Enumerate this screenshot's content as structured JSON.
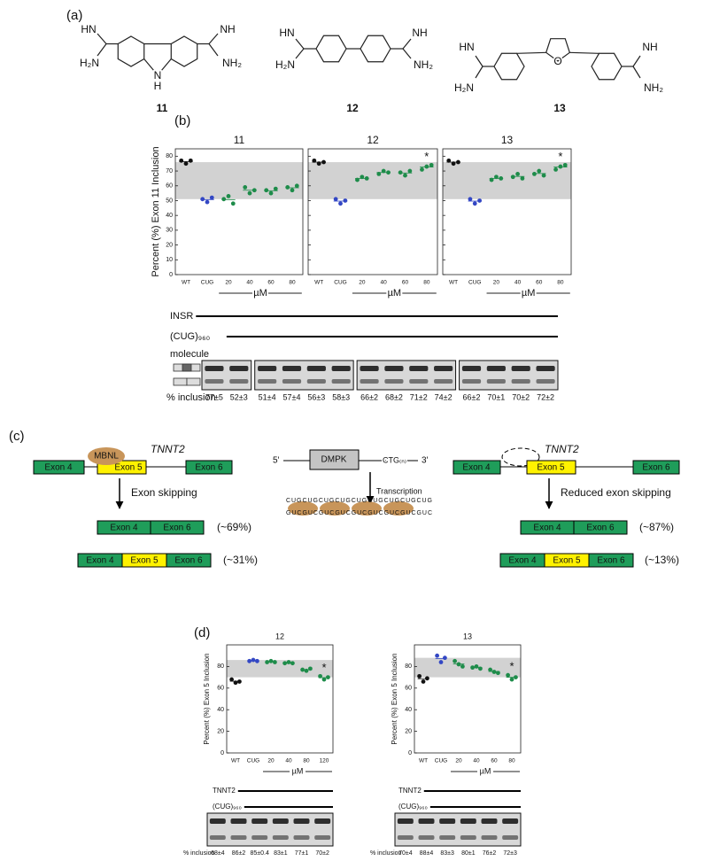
{
  "panels": [
    "(a)",
    "(b)",
    "(c)",
    "(d)"
  ],
  "molecules": [
    {
      "label": "11",
      "atoms": [
        "HN",
        "H₂N",
        "N",
        "H",
        "NH",
        "NH₂"
      ]
    },
    {
      "label": "12",
      "atoms": [
        "HN",
        "H₂N",
        "NH",
        "NH₂"
      ]
    },
    {
      "label": "13",
      "atoms": [
        "HN",
        "H₂N",
        "O",
        "NH",
        "NH₂"
      ]
    }
  ],
  "chart_data": [
    {
      "type": "strip",
      "title": "11",
      "y_label": "Percent (%) Exon 11 Inclusion",
      "x_label": "µM",
      "categories": [
        "WT",
        "CUG",
        "20",
        "40",
        "60",
        "80"
      ],
      "groups": [
        {
          "color": "#111111",
          "values": [
            77,
            75,
            77
          ]
        },
        {
          "color": "#3347c4",
          "values": [
            51,
            49,
            52
          ]
        },
        {
          "color": "#1e8c4a",
          "values": [
            51,
            53,
            48
          ]
        },
        {
          "color": "#1e8c4a",
          "values": [
            59,
            55,
            57
          ]
        },
        {
          "color": "#1e8c4a",
          "values": [
            57,
            55,
            58
          ]
        },
        {
          "color": "#1e8c4a",
          "values": [
            59,
            57,
            60
          ]
        }
      ],
      "ylim": [
        0,
        85
      ],
      "yticks": [
        0,
        10,
        20,
        30,
        40,
        50,
        60,
        70,
        80
      ],
      "shaded_range": [
        51,
        76
      ],
      "grid": false
    },
    {
      "type": "strip",
      "title": "12",
      "x_label": "µM",
      "categories": [
        "WT",
        "CUG",
        "20",
        "40",
        "60",
        "80"
      ],
      "groups": [
        {
          "color": "#111111",
          "values": [
            77,
            75,
            76
          ]
        },
        {
          "color": "#3347c4",
          "values": [
            51,
            48,
            50
          ]
        },
        {
          "color": "#1e8c4a",
          "values": [
            64,
            66,
            65
          ]
        },
        {
          "color": "#1e8c4a",
          "values": [
            68,
            70,
            69
          ]
        },
        {
          "color": "#1e8c4a",
          "values": [
            69,
            67,
            70
          ]
        },
        {
          "color": "#1e8c4a",
          "values": [
            71,
            73,
            74
          ]
        }
      ],
      "ylim": [
        0,
        85
      ],
      "yticks": [
        0,
        10,
        20,
        30,
        40,
        50,
        60,
        70,
        80
      ],
      "tick_labels": false,
      "shaded_range": [
        51,
        76
      ],
      "grid": false,
      "annotations": [
        {
          "text": "*",
          "at": "80"
        }
      ]
    },
    {
      "type": "strip",
      "title": "13",
      "x_label": "µM",
      "categories": [
        "WT",
        "CUG",
        "20",
        "40",
        "60",
        "80"
      ],
      "groups": [
        {
          "color": "#111111",
          "values": [
            77,
            75,
            76
          ]
        },
        {
          "color": "#3347c4",
          "values": [
            51,
            48,
            50
          ]
        },
        {
          "color": "#1e8c4a",
          "values": [
            64,
            66,
            65
          ]
        },
        {
          "color": "#1e8c4a",
          "values": [
            66,
            68,
            65
          ]
        },
        {
          "color": "#1e8c4a",
          "values": [
            68,
            70,
            67
          ]
        },
        {
          "color": "#1e8c4a",
          "values": [
            71,
            73,
            74
          ]
        }
      ],
      "ylim": [
        0,
        85
      ],
      "yticks": [
        0,
        10,
        20,
        30,
        40,
        50,
        60,
        70,
        80
      ],
      "tick_labels": false,
      "shaded_range": [
        51,
        76
      ],
      "grid": false,
      "annotations": [
        {
          "text": "*",
          "at": "80"
        }
      ]
    },
    {
      "type": "strip",
      "title": "12",
      "y_label": "Percent (%) Exon 5 Inclusion",
      "x_label": "µM",
      "categories": [
        "WT",
        "CUG",
        "20",
        "40",
        "80",
        "120"
      ],
      "groups": [
        {
          "color": "#111111",
          "values": [
            68,
            65,
            66
          ]
        },
        {
          "color": "#3347c4",
          "values": [
            85,
            86,
            85
          ]
        },
        {
          "color": "#1e8c4a",
          "values": [
            84,
            85,
            84
          ]
        },
        {
          "color": "#1e8c4a",
          "values": [
            83,
            84,
            83
          ]
        },
        {
          "color": "#1e8c4a",
          "values": [
            77,
            76,
            78
          ]
        },
        {
          "color": "#1e8c4a",
          "values": [
            71,
            68,
            70
          ]
        }
      ],
      "ylim": [
        0,
        100
      ],
      "yticks": [
        0,
        20,
        40,
        60,
        80
      ],
      "shaded_range": [
        70,
        86
      ],
      "grid": false,
      "annotations": [
        {
          "text": "*",
          "at": "120"
        }
      ]
    },
    {
      "type": "strip",
      "title": "13",
      "y_label": "Percent (%) Exon 5 Inclusion",
      "x_label": "µM",
      "categories": [
        "WT",
        "CUG",
        "20",
        "40",
        "60",
        "80"
      ],
      "groups": [
        {
          "color": "#111111",
          "values": [
            71,
            66,
            69
          ]
        },
        {
          "color": "#3347c4",
          "values": [
            90,
            84,
            88
          ]
        },
        {
          "color": "#1e8c4a",
          "values": [
            85,
            82,
            80
          ]
        },
        {
          "color": "#1e8c4a",
          "values": [
            79,
            80,
            78
          ]
        },
        {
          "color": "#1e8c4a",
          "values": [
            77,
            75,
            74
          ]
        },
        {
          "color": "#1e8c4a",
          "values": [
            72,
            68,
            70
          ]
        }
      ],
      "ylim": [
        0,
        100
      ],
      "yticks": [
        0,
        20,
        40,
        60,
        80
      ],
      "shaded_range": [
        70,
        88
      ],
      "grid": false,
      "annotations": [
        {
          "text": "*",
          "at": "80"
        }
      ]
    }
  ],
  "gels": [
    {
      "rows": [
        "INSR",
        "(CUG)₉₆₀",
        "molecule"
      ],
      "inclusion_label": "% inclusion",
      "inclusion": [
        "77±5",
        "52±3",
        "51±4",
        "57±4",
        "56±3",
        "58±3",
        "66±2",
        "68±2",
        "71±2",
        "74±2",
        "66±2",
        "70±1",
        "70±2",
        "72±2"
      ]
    },
    {
      "rows": [
        "TNNT2",
        "(CUG)₉₆₀"
      ],
      "inclusion_label": "% inclusion",
      "inclusion": [
        "68±4",
        "86±2",
        "85±0.4",
        "83±1",
        "77±1",
        "70±2"
      ]
    },
    {
      "rows": [
        "TNNT2",
        "(CUG)₉₆₀"
      ],
      "inclusion_label": "% inclusion",
      "inclusion": [
        "70±4",
        "88±4",
        "83±3",
        "80±1",
        "76±2",
        "72±3"
      ]
    }
  ],
  "splicing": {
    "left": {
      "gene": "TNNT2",
      "protein": "MBNL",
      "exons": [
        "Exon 4",
        "Exon 5",
        "Exon 6"
      ],
      "step": "Exon skipping",
      "products": [
        {
          "exons": [
            "Exon 4",
            "Exon 6"
          ],
          "fraction": "(~69%)"
        },
        {
          "exons": [
            "Exon 4",
            "Exon 5",
            "Exon 6"
          ],
          "fraction": "(~31%)"
        }
      ]
    },
    "middle": {
      "five": "5'",
      "gene": "DMPK",
      "repeat": "CTG₍ₙ₎",
      "three": "3'",
      "step": "Transcription",
      "rna": [
        "CUGCUGCUGCUGCUGCUGCUGCUGCUG",
        "GUCGUCGUCGUCGUCGUCGUCGUCGUC"
      ]
    },
    "right": {
      "gene": "TNNT2",
      "exons": [
        "Exon 4",
        "Exon 5",
        "Exon 6"
      ],
      "step": "Reduced exon skipping",
      "products": [
        {
          "exons": [
            "Exon 4",
            "Exon 6"
          ],
          "fraction": "(~87%)"
        },
        {
          "exons": [
            "Exon 4",
            "Exon 5",
            "Exon 6"
          ],
          "fraction": "(~13%)"
        }
      ]
    }
  }
}
